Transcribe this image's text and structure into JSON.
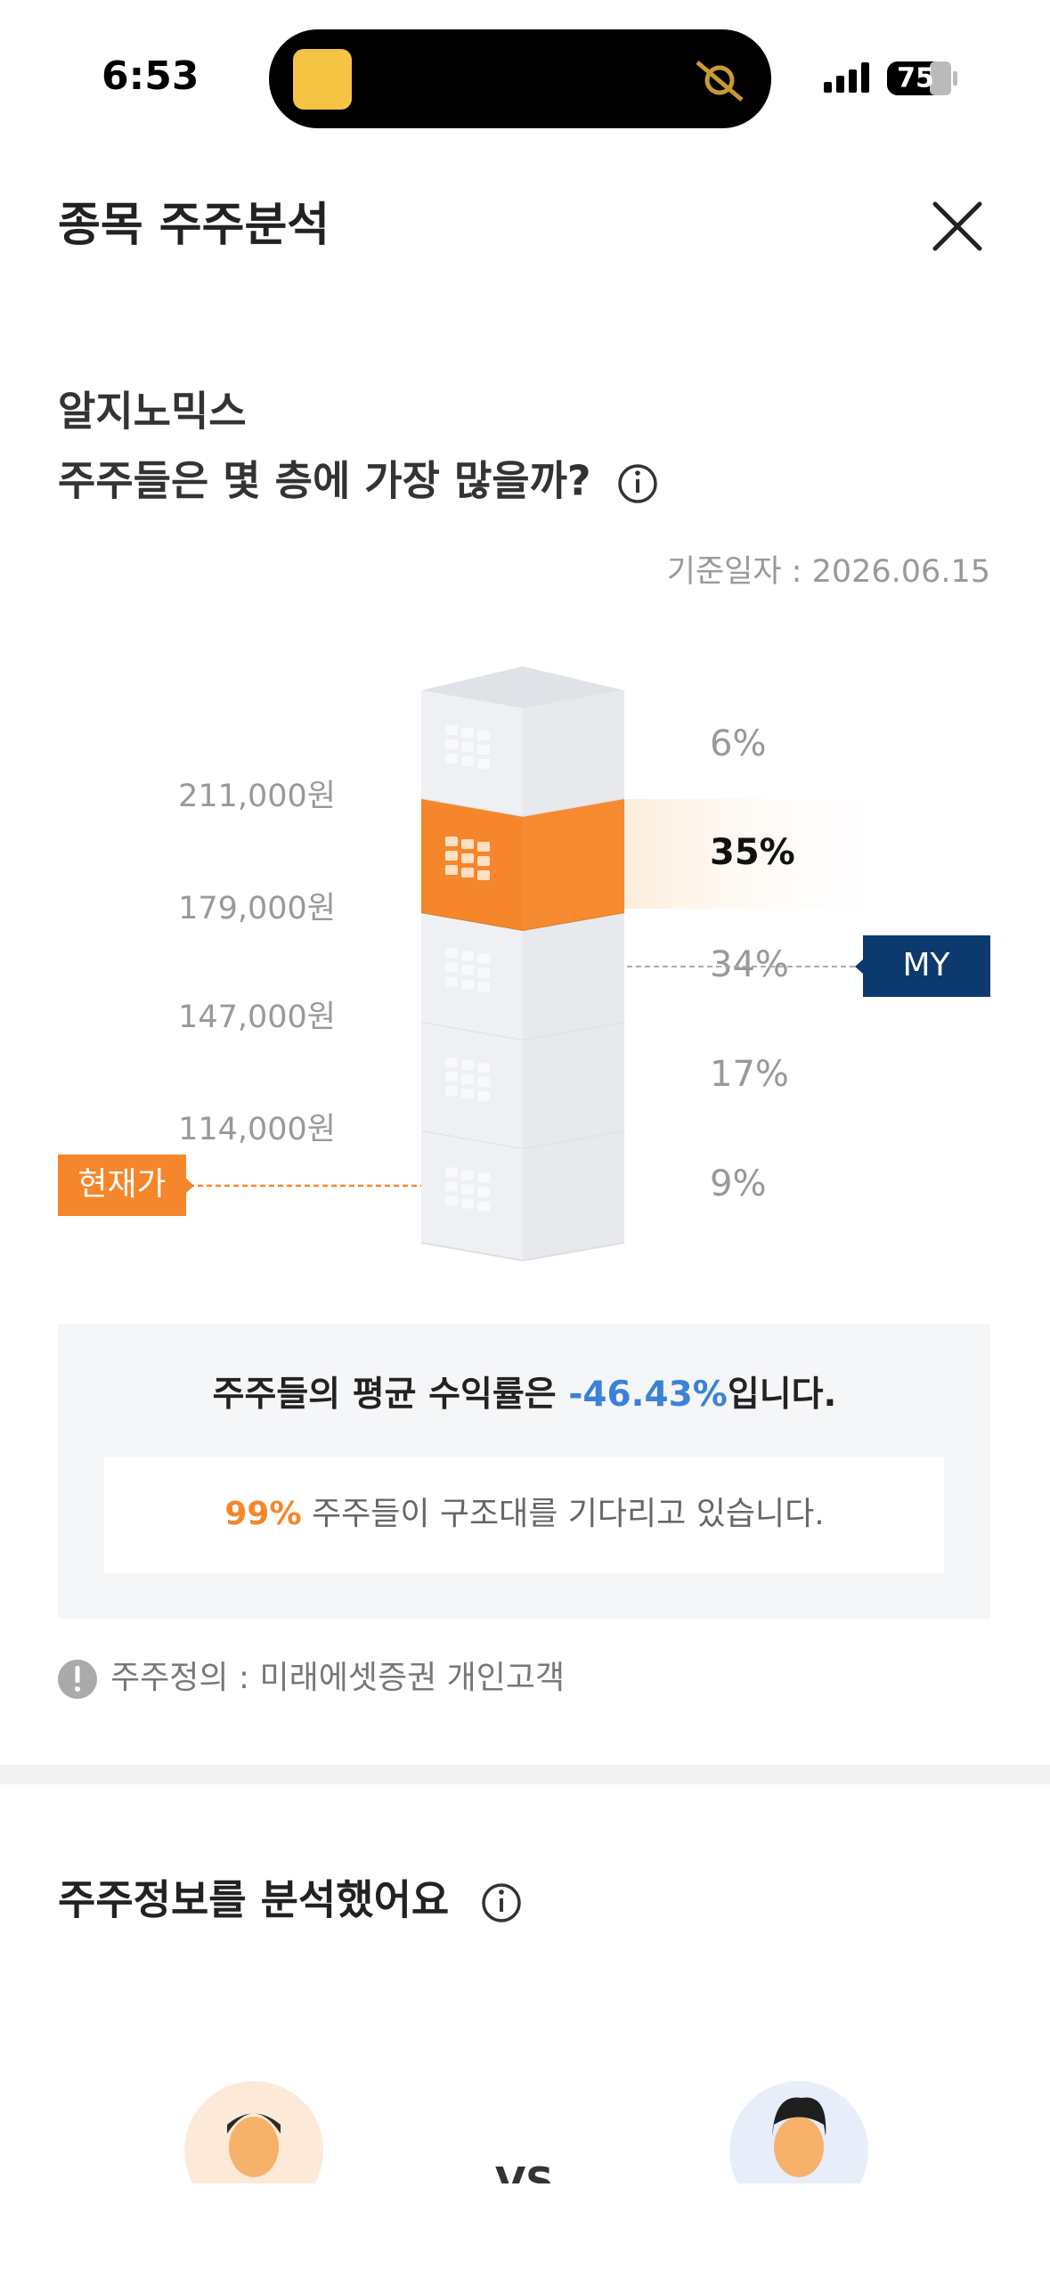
{
  "status_bar": {
    "time": "6:53",
    "battery": "75"
  },
  "header": {
    "title": "종목 주주분석"
  },
  "analysis": {
    "stock_name": "알지노믹스",
    "question": "주주들은 몇 층에 가장 많을까?",
    "base_date": "기준일자 : 2026.06.15",
    "floors": [
      "6%",
      "35%",
      "34%",
      "17%",
      "9%"
    ],
    "price_levels": [
      "211,000원",
      "179,000원",
      "147,000원",
      "114,000원"
    ],
    "my_tag": "MY",
    "current_price_tag": "현재가"
  },
  "summary": {
    "return_prefix": "주주들의 평균 수익률은 ",
    "return_value": "-46.43%",
    "return_suffix": "입니다.",
    "waiting_value": "99%",
    "waiting_text": " 주주들이 구조대를 기다리고 있습니다."
  },
  "note": "주주정의 : 미래에셋증권 개인고객",
  "section": {
    "title": "주주정보를 분석했어요",
    "vs": "VS"
  }
}
